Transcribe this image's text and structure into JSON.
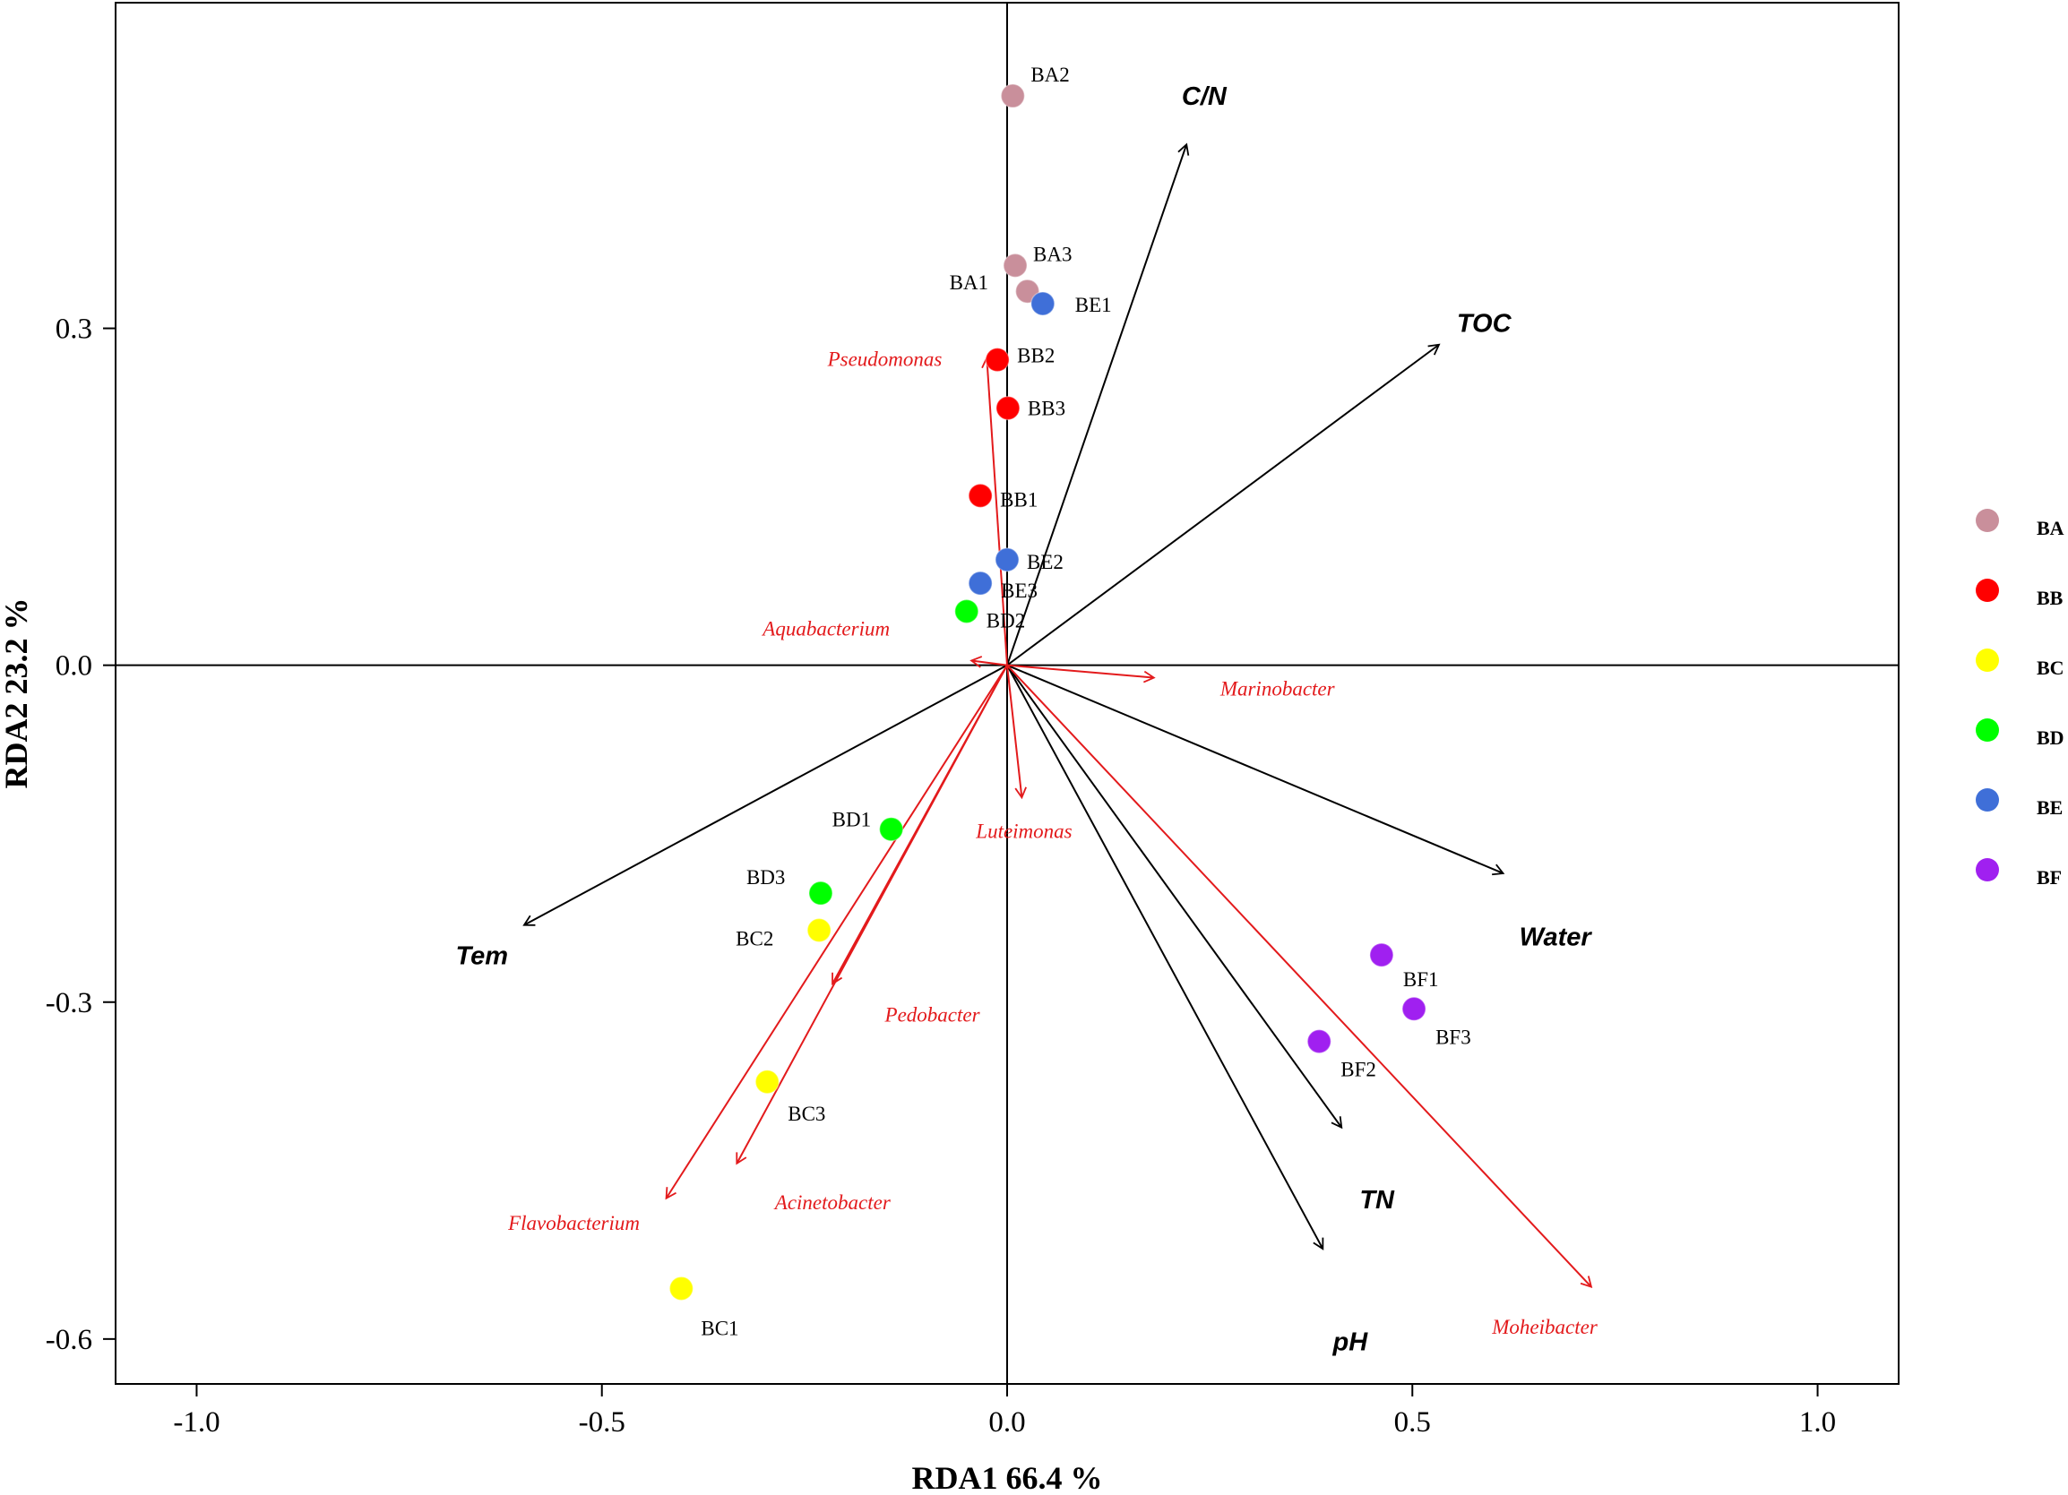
{
  "chart_data": {
    "type": "scatter",
    "subtype": "rda-biplot",
    "xlabel": "RDA1  66.4 %",
    "ylabel": "RDA2  23.2 %",
    "xlim": [
      -1.1,
      1.1
    ],
    "ylim": [
      -0.64,
      0.59
    ],
    "x_ticks": [
      -1.0,
      -0.5,
      0.0,
      0.5,
      1.0
    ],
    "x_tick_labels": [
      "-1.0",
      "-0.5",
      "0.0",
      "0.5",
      "1.0"
    ],
    "y_ticks": [
      0.3,
      0.0,
      -0.3,
      -0.6
    ],
    "y_tick_labels": [
      "0.3",
      "0.0",
      "-0.3",
      "-0.6"
    ],
    "legend_position": "right",
    "groups": [
      {
        "name": "BA",
        "color": "#c98f9b"
      },
      {
        "name": "BB",
        "color": "#ff0000"
      },
      {
        "name": "BC",
        "color": "#ffff00"
      },
      {
        "name": "BD",
        "color": "#00ff00"
      },
      {
        "name": "BE",
        "color": "#3f6fd8"
      },
      {
        "name": "BF",
        "color": "#a020f0"
      }
    ],
    "sites": [
      {
        "label": "BA1",
        "group": "BA",
        "x": 0.025,
        "y": 0.333
      },
      {
        "label": "BA2",
        "group": "BA",
        "x": 0.007,
        "y": 0.507
      },
      {
        "label": "BA3",
        "group": "BA",
        "x": 0.01,
        "y": 0.356
      },
      {
        "label": "BB1",
        "group": "BB",
        "x": -0.033,
        "y": 0.151
      },
      {
        "label": "BB2",
        "group": "BB",
        "x": -0.012,
        "y": 0.272
      },
      {
        "label": "BB3",
        "group": "BB",
        "x": 0.001,
        "y": 0.229
      },
      {
        "label": "BC1",
        "group": "BC",
        "x": -0.402,
        "y": -0.555
      },
      {
        "label": "BC2",
        "group": "BC",
        "x": -0.232,
        "y": -0.236
      },
      {
        "label": "BC3",
        "group": "BC",
        "x": -0.296,
        "y": -0.371
      },
      {
        "label": "BD1",
        "group": "BD",
        "x": -0.143,
        "y": -0.146
      },
      {
        "label": "BD2",
        "group": "BD",
        "x": -0.05,
        "y": 0.048
      },
      {
        "label": "BD3",
        "group": "BD",
        "x": -0.23,
        "y": -0.203
      },
      {
        "label": "BE1",
        "group": "BE",
        "x": 0.044,
        "y": 0.322
      },
      {
        "label": "BE2",
        "group": "BE",
        "x": 0.0,
        "y": 0.094
      },
      {
        "label": "BE3",
        "group": "BE",
        "x": -0.033,
        "y": 0.073
      },
      {
        "label": "BF1",
        "group": "BF",
        "x": 0.462,
        "y": -0.258
      },
      {
        "label": "BF2",
        "group": "BF",
        "x": 0.385,
        "y": -0.335
      },
      {
        "label": "BF3",
        "group": "BF",
        "x": 0.502,
        "y": -0.306
      }
    ],
    "env_vectors": [
      {
        "label": "C/N",
        "x": 0.221,
        "y": 0.463
      },
      {
        "label": "TOC",
        "x": 0.532,
        "y": 0.285
      },
      {
        "label": "Water",
        "x": 0.611,
        "y": -0.185
      },
      {
        "label": "TN",
        "x": 0.412,
        "y": -0.411
      },
      {
        "label": "pH",
        "x": 0.389,
        "y": -0.519
      },
      {
        "label": "Tem",
        "x": -0.595,
        "y": -0.231
      }
    ],
    "taxa_vectors": [
      {
        "label": "Pseudomonas",
        "x": -0.025,
        "y": 0.273
      },
      {
        "label": "Aquabacterium",
        "x": -0.043,
        "y": 0.004
      },
      {
        "label": "Marinobacter",
        "x": 0.18,
        "y": -0.011
      },
      {
        "label": "Luteimonas",
        "x": 0.018,
        "y": -0.117
      },
      {
        "label": "Pedobacter",
        "x": -0.215,
        "y": -0.283
      },
      {
        "label": "Acinetobacter",
        "x": -0.333,
        "y": -0.443
      },
      {
        "label": "Flavobacterium",
        "x": -0.42,
        "y": -0.474
      },
      {
        "label": "Moheibacter",
        "x": 0.72,
        "y": -0.553
      }
    ]
  }
}
